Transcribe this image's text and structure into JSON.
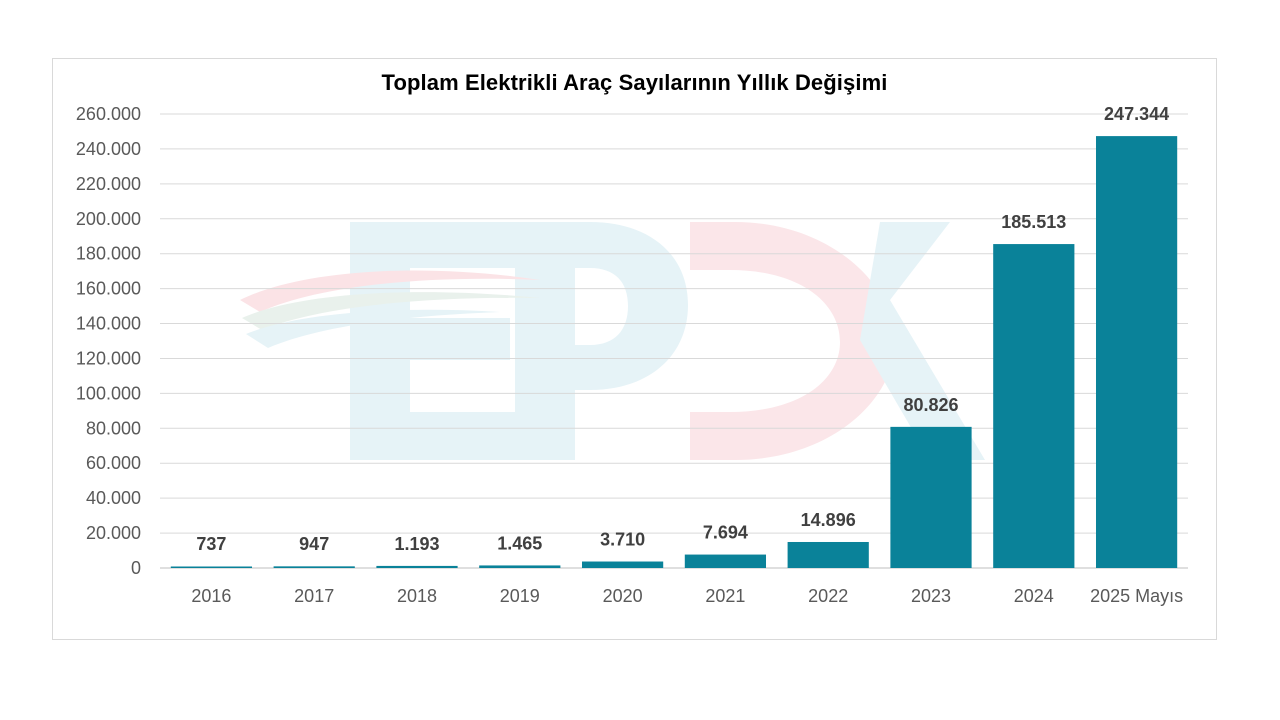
{
  "chart_data": {
    "type": "bar",
    "title": "Toplam Elektrikli Araç Sayılarının Yıllık Değişimi",
    "categories": [
      "2016",
      "2017",
      "2018",
      "2019",
      "2020",
      "2021",
      "2022",
      "2023",
      "2024",
      "2025 Mayıs"
    ],
    "values": [
      737,
      947,
      1193,
      1465,
      3710,
      7694,
      14896,
      80826,
      185513,
      247344
    ],
    "data_labels": [
      "737",
      "947",
      "1.193",
      "1.465",
      "3.710",
      "7.694",
      "14.896",
      "80.826",
      "185.513",
      "247.344"
    ],
    "ylim": [
      0,
      260000
    ],
    "yticks": [
      0,
      20000,
      40000,
      60000,
      80000,
      100000,
      120000,
      140000,
      160000,
      180000,
      200000,
      220000,
      240000,
      260000
    ],
    "ytick_labels": [
      "0",
      "20.000",
      "40.000",
      "60.000",
      "80.000",
      "100.000",
      "120.000",
      "140.000",
      "160.000",
      "180.000",
      "200.000",
      "220.000",
      "240.000",
      "260.000"
    ],
    "xlabel": "",
    "ylabel": "",
    "grid": true,
    "bar_color": "#0a8299",
    "watermark": "EPDK"
  }
}
